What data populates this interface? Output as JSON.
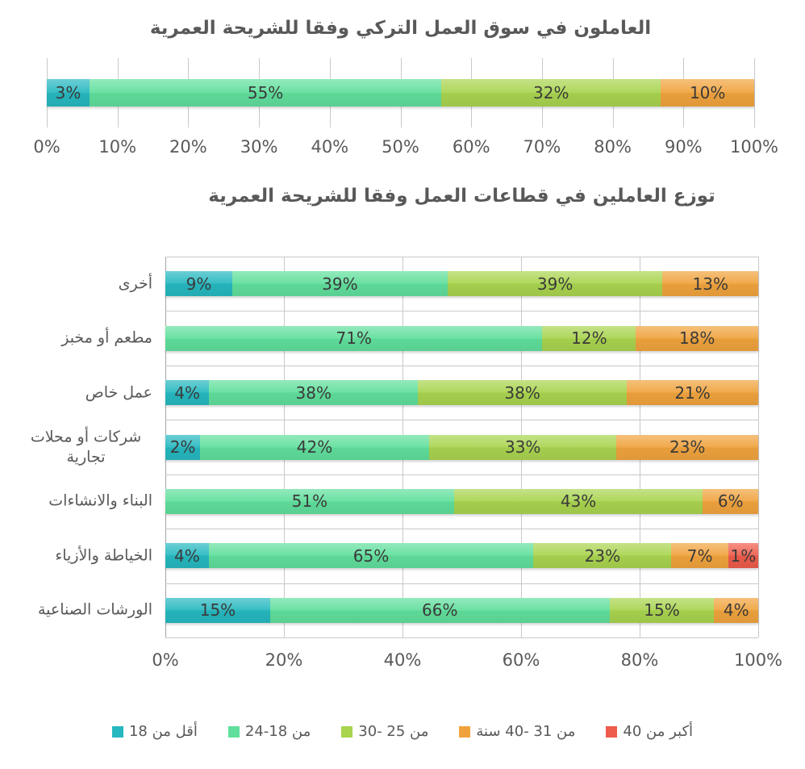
{
  "page": {
    "background": "#ffffff"
  },
  "palette": {
    "under_18": "#26b8c0",
    "age_18_24": "#60df9c",
    "age_25_30": "#a9d44f",
    "age_31_40": "#f0a33d",
    "over_40": "#ee5c4b",
    "gridline": "#c9c9c9",
    "axis_line": "#a3a3a3",
    "title_text": "#595959",
    "data_label_text": "#3a3a3a"
  },
  "chart_data": [
    {
      "type": "bar",
      "subtype": "horizontal-stacked",
      "title": "العاملون في سوق العمل التركي وفقا للشريحة العمرية",
      "categories": [
        ""
      ],
      "series": [
        {
          "name": "أقل من 18",
          "color": "#26b8c0",
          "values": [
            3
          ]
        },
        {
          "name": "من 18-24",
          "color": "#60df9c",
          "values": [
            55
          ]
        },
        {
          "name": "من 25 -30",
          "color": "#a9d44f",
          "values": [
            32
          ]
        },
        {
          "name": "من 31 -40 سنة",
          "color": "#f0a33d",
          "values": [
            10
          ]
        },
        {
          "name": "أكبر من 40",
          "color": "#ee5c4b",
          "values": [
            0
          ]
        }
      ],
      "x_ticks": [
        "0%",
        "10%",
        "20%",
        "30%",
        "40%",
        "50%",
        "60%",
        "70%",
        "80%",
        "90%",
        "100%"
      ],
      "xlim": [
        0,
        100
      ],
      "xlabel": "",
      "ylabel": "",
      "grid": true,
      "data_label_suffix": "%",
      "legend_position": "none"
    },
    {
      "type": "bar",
      "subtype": "horizontal-stacked",
      "title": "توزع العاملين في قطاعات العمل وفقا للشريحة العمرية",
      "categories": [
        "أخرى",
        "مطعم أو مخبز",
        "عمل خاص",
        "شركات أو محلات تجارية",
        "البناء والانشاءات",
        "الخياطة والأزياء",
        "الورشات الصناعية"
      ],
      "series": [
        {
          "name": "أقل من 18",
          "color": "#26b8c0",
          "values": [
            9,
            0,
            4,
            2,
            0,
            4,
            15
          ]
        },
        {
          "name": "من 18-24",
          "color": "#60df9c",
          "values": [
            39,
            71,
            38,
            42,
            51,
            65,
            66
          ]
        },
        {
          "name": "من 25 -30",
          "color": "#a9d44f",
          "values": [
            39,
            12,
            38,
            33,
            43,
            23,
            15
          ]
        },
        {
          "name": "من 31 -40 سنة",
          "color": "#f0a33d",
          "values": [
            13,
            18,
            21,
            23,
            6,
            7,
            4
          ]
        },
        {
          "name": "أكبر من 40",
          "color": "#ee5c4b",
          "values": [
            0,
            0,
            0,
            0,
            0,
            1,
            0
          ]
        }
      ],
      "x_ticks": [
        "0%",
        "20%",
        "40%",
        "60%",
        "80%",
        "100%"
      ],
      "xlim": [
        0,
        100
      ],
      "xlabel": "",
      "ylabel": "",
      "grid": true,
      "data_label_suffix": "%",
      "legend_position": "bottom"
    }
  ],
  "legend": {
    "items": [
      {
        "label": "أقل من 18",
        "color": "#26b8c0"
      },
      {
        "label": "من 18-24",
        "color": "#60df9c"
      },
      {
        "label": "من 25 -30",
        "color": "#a9d44f"
      },
      {
        "label": "من 31 -40 سنة",
        "color": "#f0a33d"
      },
      {
        "label": "أكبر من 40",
        "color": "#ee5c4b"
      }
    ]
  }
}
